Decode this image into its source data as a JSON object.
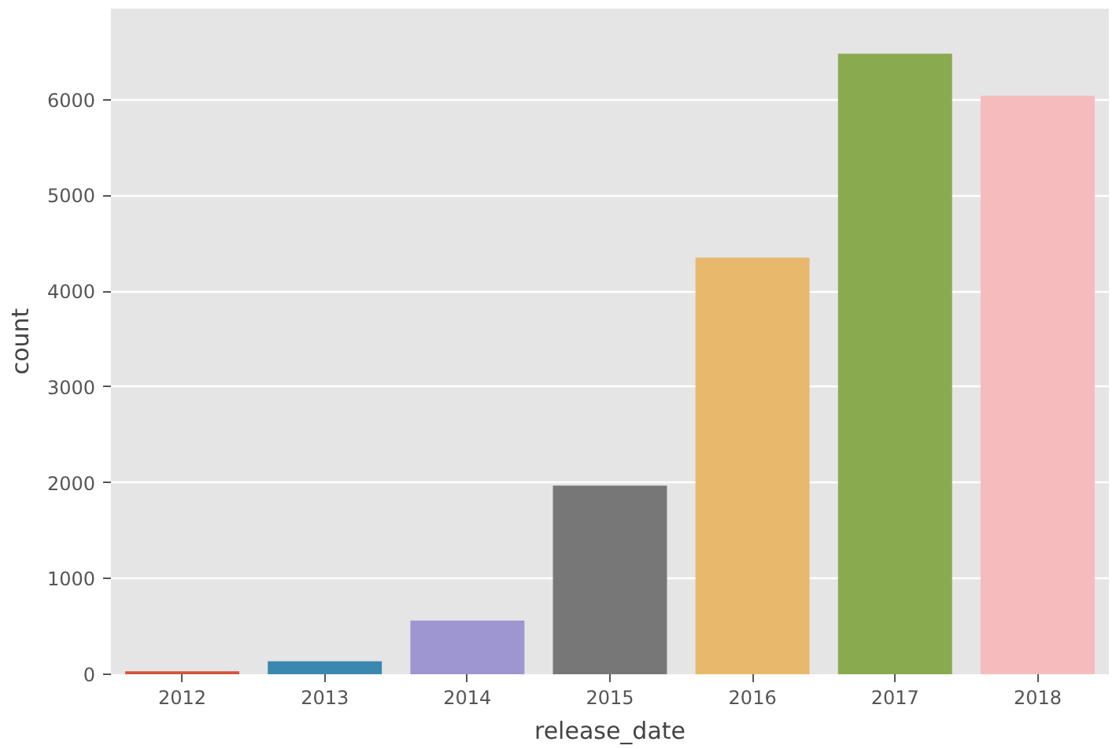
{
  "chart_data": {
    "type": "bar",
    "xlabel": "release_date",
    "ylabel": "count",
    "categories": [
      "2012",
      "2013",
      "2014",
      "2015",
      "2016",
      "2017",
      "2018"
    ],
    "values": [
      30,
      135,
      560,
      1970,
      4350,
      6480,
      6040
    ],
    "colors": [
      "#d2553b",
      "#3a87b0",
      "#9d96d0",
      "#777777",
      "#e8b86d",
      "#8aaa4f",
      "#f6bbbd"
    ],
    "ylim": [
      0,
      6950
    ],
    "yticks": [
      0,
      1000,
      2000,
      3000,
      4000,
      5000,
      6000
    ],
    "grid": true
  }
}
